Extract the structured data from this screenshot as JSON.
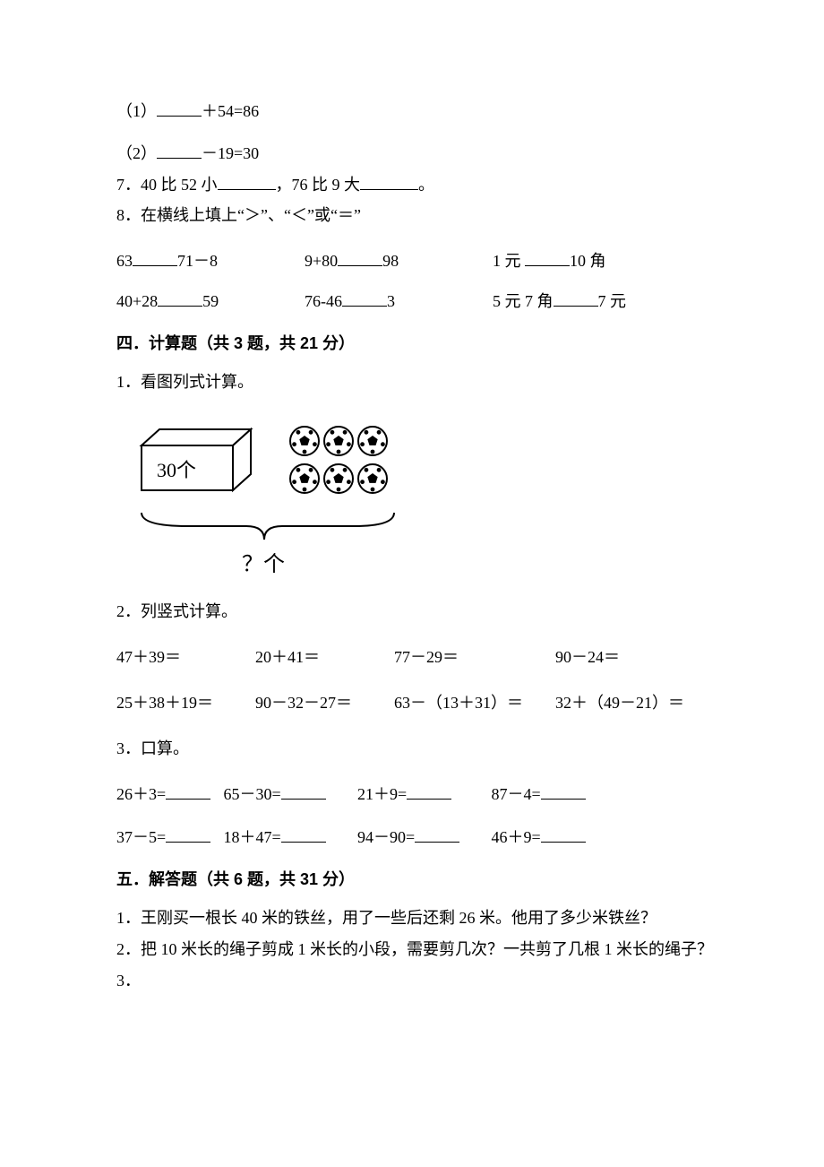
{
  "q1": {
    "prefix": "（1）",
    "suffix": "＋54=86"
  },
  "q2": {
    "prefix": "（2）",
    "suffix": "－19=30"
  },
  "q7": {
    "a": "7．40 比 52 小",
    "b": "，76 比 9 大",
    "c": "。"
  },
  "q8": {
    "text": "8．在横线上填上“＞”、“＜”或“＝”"
  },
  "cmp": {
    "r1c1a": "63",
    "r1c1b": "71－8",
    "r1c2a": "9+80",
    "r1c2b": "98",
    "r1c3a": "1 元",
    "r1c3b": "10 角",
    "r2c1a": "40+28",
    "r2c1b": "59",
    "r2c2a": "76-46",
    "r2c2b": "3",
    "r2c3a": "5 元 7 角",
    "r2c3b": "7 元"
  },
  "sec4": {
    "title": "四．计算题（共 3 题，共 21 分）"
  },
  "sec4q1": {
    "text": "1．看图列式计算。"
  },
  "figure": {
    "box_label": "30个",
    "question": "？个",
    "ball_rows": 2,
    "ball_cols": 3,
    "box_fill": "#ffffff",
    "box_stroke": "#000000",
    "ball_stroke": "#000000"
  },
  "sec4q2": {
    "text": "2．列竖式计算。"
  },
  "vert": {
    "r1": [
      "47＋39＝",
      "20＋41＝",
      "77－29＝",
      "90－24＝"
    ],
    "r2": [
      "25＋38＋19＝",
      "90－32－27＝",
      "63－（13＋31）＝",
      "32＋（49－21）＝"
    ]
  },
  "sec4q3": {
    "text": "3．口算。"
  },
  "mental": {
    "r1": [
      "26＋3=",
      "65－30=",
      "21＋9=",
      "87－4="
    ],
    "r2": [
      "37－5=",
      "18＋47=",
      "94－90=",
      "46＋9="
    ]
  },
  "sec5": {
    "title": "五．解答题（共 6 题，共 31 分）"
  },
  "sec5q": {
    "q1": "1．王刚买一根长 40 米的铁丝，用了一些后还剩 26 米。他用了多少米铁丝？",
    "q2": "2．把 10 米长的绳子剪成 1 米长的小段，需要剪几次？一共剪了几根 1 米长的绳子？",
    "q3": "3．"
  },
  "colors": {
    "text": "#000000",
    "bg": "#ffffff"
  }
}
